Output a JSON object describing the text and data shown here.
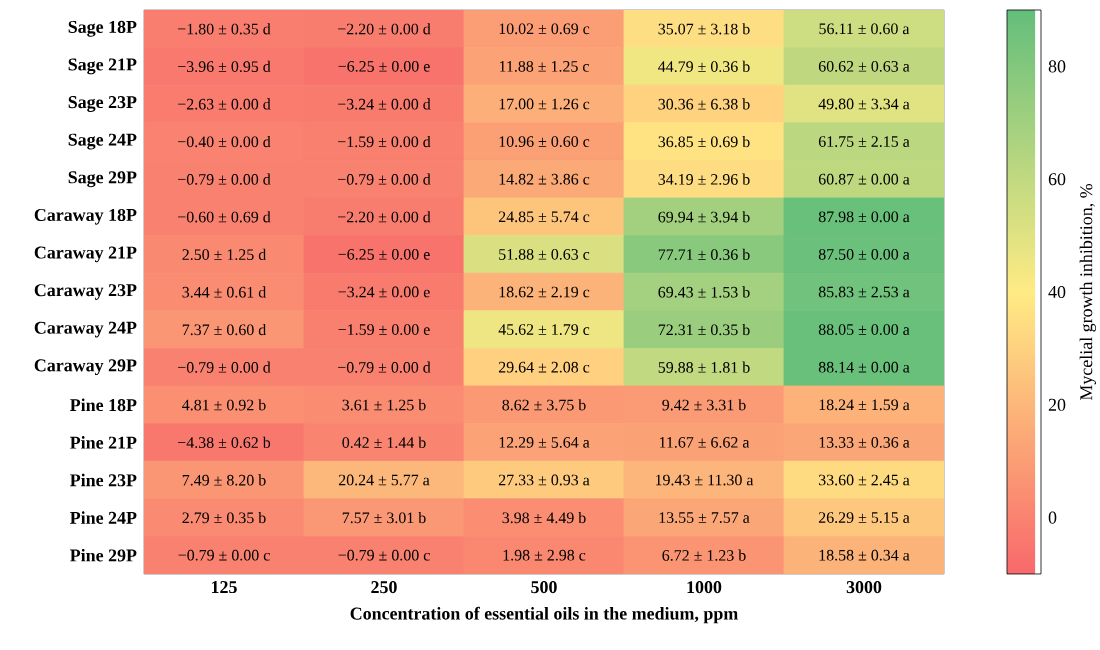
{
  "chart_data": {
    "type": "heatmap",
    "xlabel": "Concentration of essential oils in the medium, ppm",
    "clabel": "Mycelial growth inhibition, %",
    "categories": [
      "125",
      "250",
      "500",
      "1000",
      "3000"
    ],
    "y_categories": [
      "Sage 18P",
      "Sage 21P",
      "Sage 23P",
      "Sage 24P",
      "Sage 29P",
      "Caraway 18P",
      "Caraway 21P",
      "Caraway 23P",
      "Caraway 24P",
      "Caraway 29P",
      "Pine 18P",
      "Pine 21P",
      "Pine 23P",
      "Pine 24P",
      "Pine 29P"
    ],
    "cells": [
      [
        -1.8,
        -2.2,
        10.02,
        35.07,
        56.11
      ],
      [
        -3.96,
        -6.25,
        11.88,
        44.79,
        60.62
      ],
      [
        -2.63,
        -3.24,
        17.0,
        30.36,
        49.8
      ],
      [
        -0.4,
        -1.59,
        10.96,
        36.85,
        61.75
      ],
      [
        -0.79,
        -0.79,
        14.82,
        34.19,
        60.87
      ],
      [
        -0.6,
        -2.2,
        24.85,
        69.94,
        87.98
      ],
      [
        2.5,
        -6.25,
        51.88,
        77.71,
        87.5
      ],
      [
        3.44,
        -3.24,
        18.62,
        69.43,
        85.83
      ],
      [
        7.37,
        -1.59,
        45.62,
        72.31,
        88.05
      ],
      [
        -0.79,
        -0.79,
        29.64,
        59.88,
        88.14
      ],
      [
        4.81,
        3.61,
        8.62,
        9.42,
        18.24
      ],
      [
        -4.38,
        0.42,
        12.29,
        11.67,
        13.33
      ],
      [
        7.49,
        20.24,
        27.33,
        19.43,
        33.6
      ],
      [
        2.79,
        7.57,
        3.98,
        13.55,
        26.29
      ],
      [
        -0.79,
        -0.79,
        1.98,
        6.72,
        18.58
      ]
    ],
    "cell_labels": [
      [
        "−1.80 ± 0.35 d",
        "−2.20 ± 0.00 d",
        "10.02 ± 0.69 c",
        "35.07 ± 3.18 b",
        "56.11 ± 0.60 a"
      ],
      [
        "−3.96 ± 0.95 d",
        "−6.25 ± 0.00 e",
        "11.88 ± 1.25 c",
        "44.79 ± 0.36 b",
        "60.62 ± 0.63 a"
      ],
      [
        "−2.63 ± 0.00 d",
        "−3.24 ± 0.00 d",
        "17.00 ± 1.26 c",
        "30.36 ± 6.38 b",
        "49.80 ± 3.34 a"
      ],
      [
        "−0.40 ± 0.00 d",
        "−1.59 ± 0.00 d",
        "10.96 ± 0.60 c",
        "36.85 ± 0.69 b",
        "61.75 ± 2.15 a"
      ],
      [
        "−0.79 ± 0.00 d",
        "−0.79 ± 0.00 d",
        "14.82 ± 3.86 c",
        "34.19 ± 2.96 b",
        "60.87 ± 0.00 a"
      ],
      [
        "−0.60 ± 0.69 d",
        "−2.20 ± 0.00 d",
        "24.85 ± 5.74 c",
        "69.94 ± 3.94 b",
        "87.98 ± 0.00 a"
      ],
      [
        "2.50 ± 1.25 d",
        "−6.25 ± 0.00 e",
        "51.88 ± 0.63 c",
        "77.71 ± 0.36 b",
        "87.50 ± 0.00 a"
      ],
      [
        "3.44 ± 0.61 d",
        "−3.24 ± 0.00 e",
        "18.62 ± 2.19 c",
        "69.43 ± 1.53 b",
        "85.83 ± 2.53 a"
      ],
      [
        "7.37 ± 0.60 d",
        "−1.59 ± 0.00 e",
        "45.62 ± 1.79 c",
        "72.31 ± 0.35 b",
        "88.05 ± 0.00 a"
      ],
      [
        "−0.79 ± 0.00 d",
        "−0.79 ± 0.00 d",
        "29.64 ± 2.08 c",
        "59.88 ± 1.81 b",
        "88.14 ± 0.00 a"
      ],
      [
        "4.81 ± 0.92 b",
        "3.61 ± 1.25 b",
        "8.62 ± 3.75 b",
        "9.42 ± 3.31 b",
        "18.24 ± 1.59 a"
      ],
      [
        "−4.38 ± 0.62 b",
        "0.42 ± 1.44 b",
        "12.29 ± 5.64 a",
        "11.67 ± 6.62 a",
        "13.33 ± 0.36 a"
      ],
      [
        "7.49 ± 8.20 b",
        "20.24 ± 5.77 a",
        "27.33 ± 0.93 a",
        "19.43 ± 11.30 a",
        "33.60 ± 2.45 a"
      ],
      [
        "2.79 ± 0.35 b",
        "7.57 ± 3.01 b",
        "3.98 ± 4.49 b",
        "13.55 ± 7.57 a",
        "26.29 ± 5.15 a"
      ],
      [
        "−0.79 ± 0.00 c",
        "−0.79 ± 0.00 c",
        "1.98 ± 2.98 c",
        "6.72 ± 1.23 b",
        "18.58 ± 0.34 a"
      ]
    ],
    "clim": [
      -10,
      90
    ],
    "cticks": [
      0,
      20,
      40,
      60,
      80
    ]
  }
}
